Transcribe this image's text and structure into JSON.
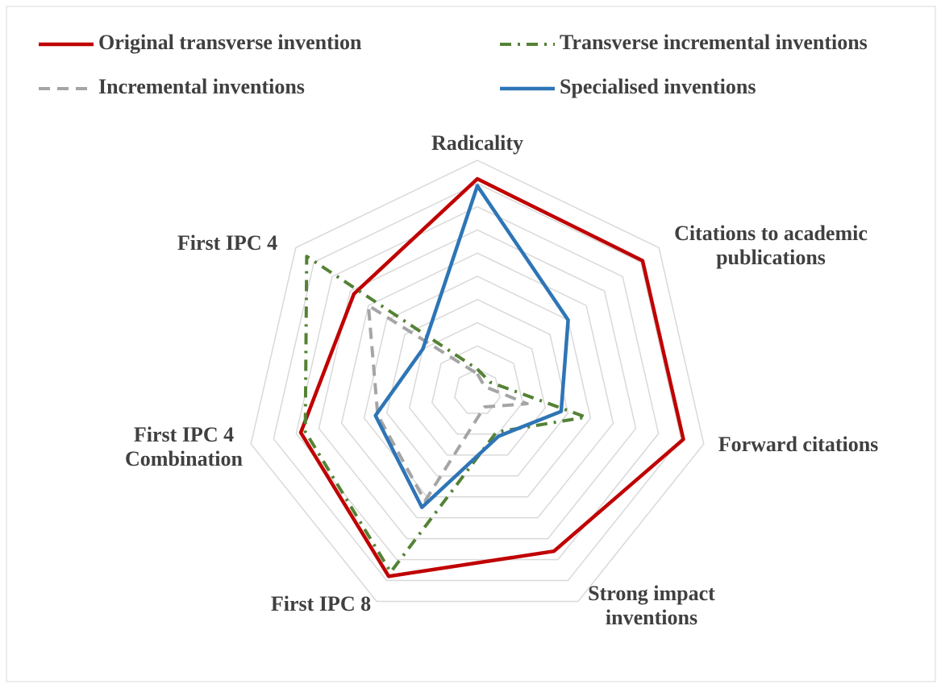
{
  "chart_data": {
    "type": "radar",
    "categories": [
      "Radicality",
      "Citations to academic publications",
      "Forward citations",
      "Strong impact inventions",
      "First IPC 8",
      "First IPC 4 Combination",
      "First IPC 4"
    ],
    "series": [
      {
        "name": "Original transverse invention",
        "color": "#c00000",
        "line_style": "solid",
        "values": [
          92,
          91,
          91,
          76,
          88,
          78,
          68
        ]
      },
      {
        "name": "Transverse incremental inventions",
        "color": "#548235",
        "line_style": "dashdot",
        "values": [
          10,
          7,
          48,
          19,
          86,
          76,
          94
        ]
      },
      {
        "name": "Incremental inventions",
        "color": "#a5a5a5",
        "line_style": "dashed",
        "values": [
          8,
          4,
          22,
          7,
          52,
          44,
          60
        ]
      },
      {
        "name": "Specialised inventions",
        "color": "#2e75b6",
        "line_style": "solid",
        "values": [
          89,
          50,
          37,
          21,
          55,
          45,
          30
        ]
      }
    ],
    "ylim": [
      0,
      100
    ],
    "yticks": [
      10,
      20,
      30,
      40,
      50,
      60,
      70,
      80,
      90,
      100
    ],
    "grid": true
  }
}
